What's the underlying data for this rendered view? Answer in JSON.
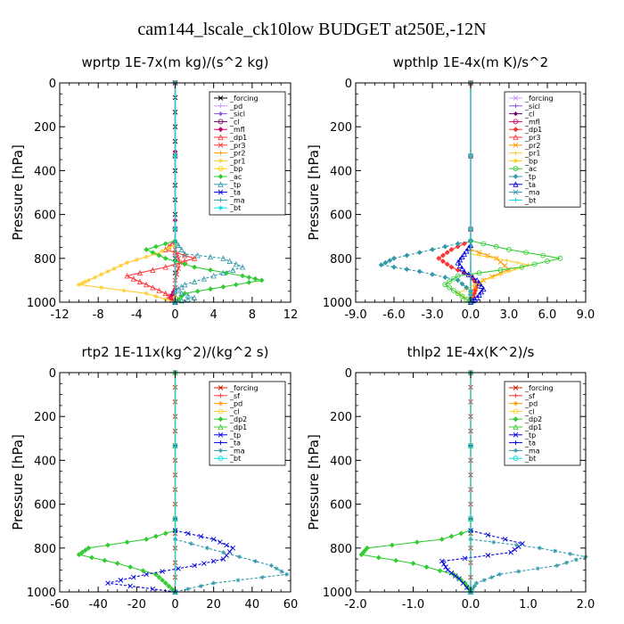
{
  "title": "cam144_lscale_ck10low  BUDGET at250E,-12N",
  "colors": {
    "black": "#000000",
    "lavender": "#cc99ff",
    "purple": "#8855dd",
    "darkpurple": "#660066",
    "magenta": "#cc0066",
    "red": "#ff3333",
    "darkred": "#cc2200",
    "orange": "#ff9900",
    "yellow": "#ffcc33",
    "gold": "#ffcc00",
    "green": "#33cc33",
    "teal": "#3399aa",
    "blue": "#0000dd",
    "cyan": "#00dddd"
  },
  "chart_data": [
    {
      "type": "line",
      "title": "wprtp   1E-7x(m kg)/(s^2 kg)",
      "ylabel": "Pressure [hPa]",
      "xlim": [
        -12,
        12
      ],
      "ylim": [
        1000,
        0
      ],
      "xticks": [
        "-12",
        "-8",
        "-4",
        "0",
        "4",
        "8",
        "12"
      ],
      "xtick_values": [
        -12,
        -8,
        -4,
        0,
        4,
        8,
        12
      ],
      "yticks": [
        "0",
        "200",
        "400",
        "600",
        "800",
        "1000"
      ],
      "legend_position": "top-right",
      "series": [
        {
          "name": "_forcing",
          "color": "black",
          "p": [
            0,
            200,
            400,
            600,
            800,
            1000
          ],
          "x": [
            0,
            0,
            0,
            0,
            0,
            0
          ]
        },
        {
          "name": "_pd",
          "color": "lavender",
          "p": [
            0,
            1000
          ],
          "x": [
            0,
            0
          ]
        },
        {
          "name": "_sicl",
          "color": "purple",
          "p": [
            0,
            1000
          ],
          "x": [
            0,
            0
          ]
        },
        {
          "name": "_cl",
          "color": "darkpurple",
          "p": [
            0,
            1000
          ],
          "x": [
            0,
            0
          ]
        },
        {
          "name": "_mfl",
          "color": "magenta",
          "p": [
            0,
            940,
            980,
            1000
          ],
          "x": [
            0,
            0,
            -0.5,
            0
          ]
        },
        {
          "name": "_dp1",
          "color": "red",
          "p": [
            720,
            760,
            800,
            840,
            880,
            920,
            960,
            1000
          ],
          "x": [
            0,
            -1,
            2,
            -1,
            -5,
            -3,
            -1,
            0
          ]
        },
        {
          "name": "_pr3",
          "color": "red",
          "p": [
            760,
            820,
            900,
            1000
          ],
          "x": [
            0,
            0.5,
            0,
            0
          ]
        },
        {
          "name": "_pr2",
          "color": "orange",
          "p": [
            960,
            1000
          ],
          "x": [
            0,
            0
          ]
        },
        {
          "name": "_pr1",
          "color": "yellow",
          "p": [
            740,
            780,
            820,
            860,
            900,
            920,
            960,
            1000
          ],
          "x": [
            0,
            -2,
            -5,
            -7,
            -9,
            -10,
            -3,
            0
          ]
        },
        {
          "name": "_bp",
          "color": "gold",
          "p": [
            0,
            1000
          ],
          "x": [
            0,
            0
          ]
        },
        {
          "name": "_ac",
          "color": "green",
          "p": [
            720,
            760,
            800,
            840,
            880,
            900,
            930,
            960,
            1000
          ],
          "x": [
            0,
            -3,
            -1,
            2,
            7,
            9,
            5,
            1,
            0
          ]
        },
        {
          "name": "_tp",
          "color": "teal",
          "p": [
            720,
            780,
            800,
            840,
            880,
            920,
            950,
            980,
            1000
          ],
          "x": [
            0,
            1,
            5,
            7,
            4,
            1,
            0,
            2,
            0
          ]
        },
        {
          "name": "_ta",
          "color": "blue",
          "p": [
            0,
            1000
          ],
          "x": [
            0,
            0
          ]
        },
        {
          "name": "_ma",
          "color": "teal",
          "p": [
            0,
            1000
          ],
          "x": [
            0,
            0
          ]
        },
        {
          "name": "_bt",
          "color": "cyan",
          "p": [
            0,
            1000
          ],
          "x": [
            0,
            0
          ]
        }
      ]
    },
    {
      "type": "line",
      "title": "wpthlp   1E-4x(m K)/s^2",
      "ylabel": "Pressure [hPa]",
      "xlim": [
        -9.0,
        9.0
      ],
      "ylim": [
        1000,
        0
      ],
      "xticks": [
        "-9.0",
        "-6.0",
        "-3.0",
        "0.0",
        "3.0",
        "6.0",
        "9.0"
      ],
      "xtick_values": [
        -9,
        -6,
        -3,
        0,
        3,
        6,
        9
      ],
      "yticks": [
        "0",
        "200",
        "400",
        "600",
        "800",
        "1000"
      ],
      "legend_position": "top-right",
      "series": [
        {
          "name": "_forcing",
          "color": "lavender",
          "p": [
            0,
            1000
          ],
          "x": [
            0,
            0
          ]
        },
        {
          "name": "_sicl",
          "color": "purple",
          "p": [
            0,
            1000
          ],
          "x": [
            0,
            0
          ]
        },
        {
          "name": "_cl",
          "color": "darkpurple",
          "p": [
            0,
            1000
          ],
          "x": [
            0,
            0
          ]
        },
        {
          "name": "_mfl",
          "color": "magenta",
          "p": [
            0,
            1000
          ],
          "x": [
            0,
            0
          ]
        },
        {
          "name": "_dp1",
          "color": "red",
          "p": [
            720,
            760,
            800,
            840,
            880,
            920,
            960,
            1000
          ],
          "x": [
            0,
            -1.5,
            -2.5,
            -1.5,
            0,
            0.5,
            0.3,
            0
          ]
        },
        {
          "name": "_pr3",
          "color": "red",
          "p": [
            0,
            1000
          ],
          "x": [
            0,
            0
          ]
        },
        {
          "name": "_pr2",
          "color": "orange",
          "p": [
            760,
            800,
            850,
            900,
            950,
            1000
          ],
          "x": [
            0,
            2,
            3,
            1,
            0,
            0
          ]
        },
        {
          "name": "_pr1",
          "color": "yellow",
          "p": [
            780,
            800,
            830,
            860,
            900,
            960,
            1000
          ],
          "x": [
            0,
            2,
            4.5,
            3,
            1,
            -1,
            0
          ]
        },
        {
          "name": "_bp",
          "color": "gold",
          "p": [
            0,
            1000
          ],
          "x": [
            0,
            0
          ]
        },
        {
          "name": "_ac",
          "color": "green",
          "p": [
            720,
            760,
            800,
            840,
            880,
            920,
            960,
            1000
          ],
          "x": [
            0,
            3,
            7,
            4,
            -1,
            -2,
            -1,
            0
          ]
        },
        {
          "name": "_tp",
          "color": "teal",
          "p": [
            720,
            760,
            800,
            830,
            860,
            900,
            950,
            1000
          ],
          "x": [
            0,
            -3,
            -6,
            -7,
            -4,
            -1,
            0,
            0
          ]
        },
        {
          "name": "_ta",
          "color": "blue",
          "p": [
            740,
            780,
            820,
            860,
            900,
            940,
            980,
            1000
          ],
          "x": [
            0,
            -0.5,
            -1,
            -0.5,
            0.5,
            1,
            0.5,
            0
          ]
        },
        {
          "name": "_ma",
          "color": "teal",
          "p": [
            0,
            1000
          ],
          "x": [
            0,
            0
          ]
        },
        {
          "name": "_bt",
          "color": "cyan",
          "p": [
            0,
            1000
          ],
          "x": [
            0,
            0
          ]
        }
      ]
    },
    {
      "type": "line",
      "title": "rtp2   1E-11x(kg^2)/(kg^2 s)",
      "ylabel": "Pressure [hPa]",
      "xlim": [
        -60,
        60
      ],
      "ylim": [
        1000,
        0
      ],
      "xticks": [
        "-60",
        "-40",
        "-20",
        "0",
        "20",
        "40",
        "60"
      ],
      "xtick_values": [
        -60,
        -40,
        -20,
        0,
        20,
        40,
        60
      ],
      "yticks": [
        "0",
        "200",
        "400",
        "600",
        "800",
        "1000"
      ],
      "legend_position": "top-right",
      "series": [
        {
          "name": "_forcing",
          "color": "darkred",
          "p": [
            0,
            200,
            400,
            600,
            800,
            1000
          ],
          "x": [
            0,
            0,
            0,
            0,
            0,
            0
          ]
        },
        {
          "name": "_sf",
          "color": "red",
          "p": [
            0,
            1000
          ],
          "x": [
            0,
            0
          ]
        },
        {
          "name": "_pd",
          "color": "orange",
          "p": [
            0,
            1000
          ],
          "x": [
            0,
            0
          ]
        },
        {
          "name": "_cl",
          "color": "yellow",
          "p": [
            0,
            1000
          ],
          "x": [
            0,
            0
          ]
        },
        {
          "name": "_dp2",
          "color": "green",
          "p": [
            720,
            760,
            800,
            830,
            870,
            920,
            960,
            1000
          ],
          "x": [
            0,
            -15,
            -45,
            -50,
            -30,
            -10,
            -5,
            0
          ]
        },
        {
          "name": "_dp1",
          "color": "green",
          "p": [
            0,
            1000
          ],
          "x": [
            0,
            0
          ]
        },
        {
          "name": "_tp",
          "color": "blue",
          "p": [
            720,
            760,
            800,
            850,
            880,
            920,
            960,
            1000
          ],
          "x": [
            0,
            20,
            30,
            25,
            10,
            -15,
            -35,
            0
          ]
        },
        {
          "name": "_ta",
          "color": "blue",
          "p": [
            0,
            1000
          ],
          "x": [
            0,
            0
          ]
        },
        {
          "name": "_ma",
          "color": "teal",
          "p": [
            760,
            820,
            880,
            920,
            960,
            1000
          ],
          "x": [
            0,
            25,
            50,
            58,
            20,
            0
          ]
        },
        {
          "name": "_bt",
          "color": "cyan",
          "p": [
            0,
            1000
          ],
          "x": [
            0,
            0
          ]
        }
      ]
    },
    {
      "type": "line",
      "title": "thlp2   1E-4x(K^2)/s",
      "ylabel": "Pressure [hPa]",
      "xlim": [
        -2.0,
        2.0
      ],
      "ylim": [
        1000,
        0
      ],
      "xticks": [
        "-2.0",
        "-1.0",
        "0.0",
        "1.0",
        "2.0"
      ],
      "xtick_values": [
        -2,
        -1,
        0,
        1,
        2
      ],
      "yticks": [
        "0",
        "200",
        "400",
        "600",
        "800",
        "1000"
      ],
      "legend_position": "top-right",
      "series": [
        {
          "name": "_forcing",
          "color": "darkred",
          "p": [
            0,
            200,
            400,
            600,
            800,
            1000
          ],
          "x": [
            0,
            0,
            0,
            0,
            0,
            0
          ]
        },
        {
          "name": "_sf",
          "color": "red",
          "p": [
            0,
            1000
          ],
          "x": [
            0,
            0
          ]
        },
        {
          "name": "_pd",
          "color": "orange",
          "p": [
            0,
            1000
          ],
          "x": [
            0,
            0
          ]
        },
        {
          "name": "_cl",
          "color": "yellow",
          "p": [
            0,
            1000
          ],
          "x": [
            0,
            0
          ]
        },
        {
          "name": "_dp2",
          "color": "green",
          "p": [
            720,
            760,
            800,
            830,
            870,
            920,
            960,
            1000
          ],
          "x": [
            0,
            -0.5,
            -1.8,
            -1.9,
            -1.0,
            -0.3,
            -0.1,
            0
          ]
        },
        {
          "name": "_dp1",
          "color": "green",
          "p": [
            0,
            1000
          ],
          "x": [
            0,
            0
          ]
        },
        {
          "name": "_tp",
          "color": "blue",
          "p": [
            720,
            780,
            820,
            860,
            900,
            940,
            1000
          ],
          "x": [
            0,
            0.9,
            0.7,
            -0.5,
            -0.4,
            -0.2,
            0
          ]
        },
        {
          "name": "_ta",
          "color": "blue",
          "p": [
            0,
            1000
          ],
          "x": [
            0,
            0
          ]
        },
        {
          "name": "_ma",
          "color": "teal",
          "p": [
            760,
            800,
            840,
            880,
            920,
            960,
            1000
          ],
          "x": [
            0,
            1.2,
            2.0,
            1.5,
            0.5,
            0.1,
            0
          ]
        },
        {
          "name": "_bt",
          "color": "cyan",
          "p": [
            0,
            1000
          ],
          "x": [
            0,
            0
          ]
        }
      ]
    }
  ]
}
